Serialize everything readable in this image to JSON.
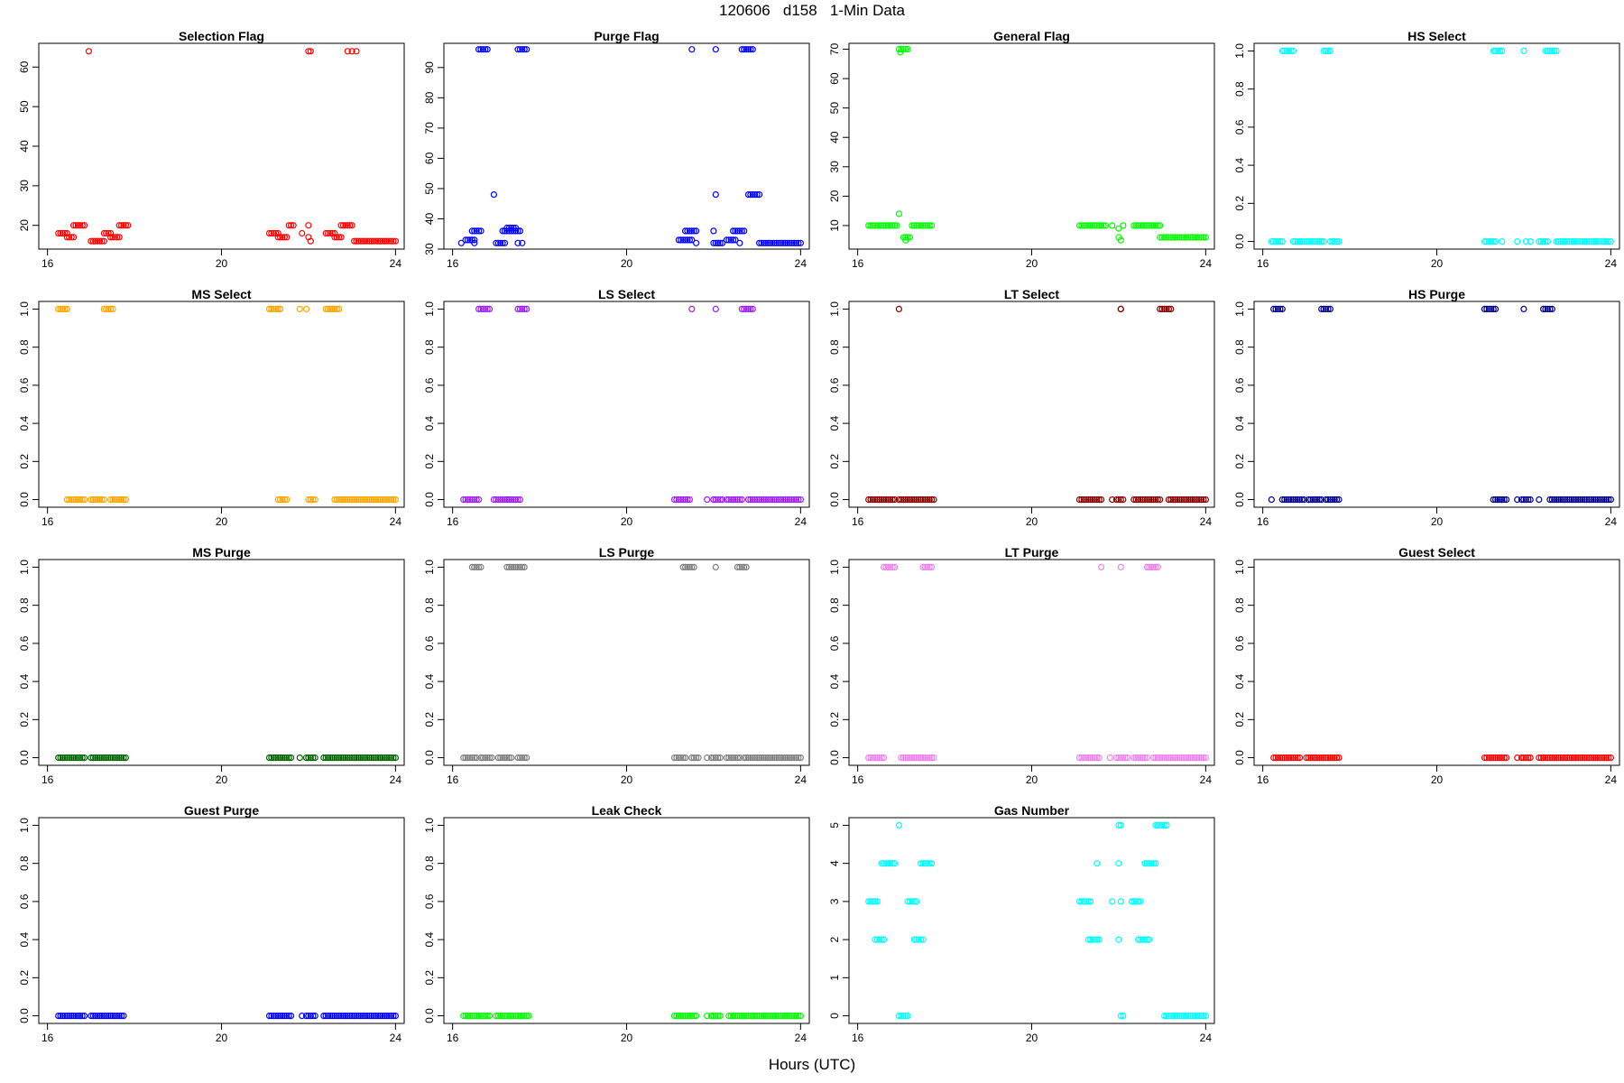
{
  "title": "120606   d158   1-Min Data",
  "xlabel": "Hours (UTC)",
  "chart_data": [
    {
      "type": "scatter",
      "title": "Selection Flag",
      "color": "#ff0000",
      "ylim": [
        14,
        66
      ],
      "yticks": [
        20,
        30,
        40,
        50,
        60
      ],
      "xlim": [
        15.8,
        24.2
      ],
      "xticks": [
        16,
        20,
        24
      ],
      "segments": [
        [
          16.25,
          16.45,
          18
        ],
        [
          16.45,
          16.6,
          17
        ],
        [
          16.6,
          16.85,
          20
        ],
        [
          17.0,
          17.3,
          16
        ],
        [
          17.3,
          17.45,
          18
        ],
        [
          17.45,
          17.65,
          17
        ],
        [
          17.65,
          17.85,
          20
        ],
        [
          21.1,
          21.3,
          18
        ],
        [
          21.3,
          21.5,
          17
        ],
        [
          21.55,
          21.65,
          20
        ],
        [
          22.4,
          22.6,
          18
        ],
        [
          22.6,
          22.75,
          17
        ],
        [
          22.75,
          23.0,
          20
        ],
        [
          23.05,
          24.0,
          16
        ]
      ],
      "points": [
        [
          16.95,
          64
        ],
        [
          22.0,
          64
        ],
        [
          22.05,
          64
        ],
        [
          22.9,
          64
        ],
        [
          23.0,
          64
        ],
        [
          23.1,
          64
        ],
        [
          21.85,
          18
        ],
        [
          22.0,
          20
        ],
        [
          22.0,
          17
        ],
        [
          22.05,
          16
        ]
      ]
    },
    {
      "type": "scatter",
      "title": "Purge Flag",
      "color": "#0000ff",
      "ylim": [
        30,
        98
      ],
      "yticks": [
        30,
        40,
        50,
        60,
        70,
        80,
        90
      ],
      "xlim": [
        15.8,
        24.2
      ],
      "xticks": [
        16,
        20,
        24
      ],
      "segments": [
        [
          16.3,
          16.5,
          33
        ],
        [
          16.45,
          16.65,
          36
        ],
        [
          16.6,
          16.8,
          96
        ],
        [
          17.0,
          17.2,
          32
        ],
        [
          17.15,
          17.55,
          36
        ],
        [
          17.25,
          17.45,
          37
        ],
        [
          17.5,
          17.7,
          96
        ],
        [
          21.2,
          21.5,
          33
        ],
        [
          21.35,
          21.6,
          36
        ],
        [
          22.0,
          22.2,
          32
        ],
        [
          22.3,
          22.5,
          33
        ],
        [
          22.45,
          22.7,
          36
        ],
        [
          22.65,
          22.9,
          96
        ],
        [
          22.8,
          23.05,
          48
        ],
        [
          23.05,
          24.0,
          32
        ]
      ],
      "points": [
        [
          16.2,
          32
        ],
        [
          16.5,
          32
        ],
        [
          16.95,
          48
        ],
        [
          17.6,
          32
        ],
        [
          17.5,
          32
        ],
        [
          21.6,
          32
        ],
        [
          21.5,
          96
        ],
        [
          22.05,
          96
        ],
        [
          22.05,
          48
        ],
        [
          22.0,
          36
        ],
        [
          22.1,
          32
        ],
        [
          22.6,
          32
        ]
      ]
    },
    {
      "type": "scatter",
      "title": "General Flag",
      "color": "#00ff00",
      "ylim": [
        2,
        72
      ],
      "yticks": [
        10,
        20,
        30,
        40,
        50,
        60,
        70
      ],
      "xlim": [
        15.8,
        24.2
      ],
      "xticks": [
        16,
        20,
        24
      ],
      "segments": [
        [
          16.25,
          16.9,
          10
        ],
        [
          16.95,
          17.15,
          70
        ],
        [
          17.05,
          17.2,
          6
        ],
        [
          17.25,
          17.7,
          10
        ],
        [
          21.1,
          21.7,
          10
        ],
        [
          22.35,
          22.95,
          10
        ],
        [
          22.95,
          24.0,
          6
        ]
      ],
      "points": [
        [
          16.95,
          14
        ],
        [
          16.98,
          69
        ],
        [
          17.1,
          5
        ],
        [
          21.85,
          10
        ],
        [
          22.0,
          9
        ],
        [
          22.0,
          6
        ],
        [
          22.05,
          5
        ],
        [
          22.1,
          10
        ]
      ]
    },
    {
      "type": "scatter",
      "title": "HS Select",
      "color": "#00ffff",
      "ylim": [
        -0.04,
        1.04
      ],
      "yticks": [
        0.0,
        0.2,
        0.4,
        0.6,
        0.8,
        1.0
      ],
      "xlim": [
        15.8,
        24.2
      ],
      "xticks": [
        16,
        20,
        24
      ],
      "segments": [
        [
          16.2,
          16.45,
          0
        ],
        [
          16.45,
          16.7,
          1
        ],
        [
          16.7,
          16.95,
          0
        ],
        [
          17.0,
          17.4,
          0
        ],
        [
          17.4,
          17.55,
          1
        ],
        [
          17.55,
          17.75,
          0
        ],
        [
          21.1,
          21.35,
          0
        ],
        [
          21.3,
          21.5,
          1
        ],
        [
          22.35,
          22.55,
          0
        ],
        [
          22.5,
          22.75,
          1
        ],
        [
          22.75,
          24.0,
          0
        ]
      ],
      "points": [
        [
          16.3,
          0
        ],
        [
          21.5,
          0
        ],
        [
          21.85,
          0
        ],
        [
          22.0,
          1
        ],
        [
          22.05,
          0
        ],
        [
          22.15,
          0
        ]
      ]
    },
    {
      "type": "scatter",
      "title": "MS Select",
      "color": "#ffa500",
      "ylim": [
        -0.04,
        1.04
      ],
      "yticks": [
        0.0,
        0.2,
        0.4,
        0.6,
        0.8,
        1.0
      ],
      "xlim": [
        15.8,
        24.2
      ],
      "xticks": [
        16,
        20,
        24
      ],
      "segments": [
        [
          16.25,
          16.45,
          1
        ],
        [
          16.45,
          16.85,
          0
        ],
        [
          17.0,
          17.3,
          0
        ],
        [
          17.3,
          17.5,
          1
        ],
        [
          17.45,
          17.8,
          0
        ],
        [
          21.1,
          21.35,
          1
        ],
        [
          21.3,
          21.5,
          0
        ],
        [
          22.0,
          22.1,
          0
        ],
        [
          22.4,
          22.7,
          1
        ],
        [
          22.6,
          24.0,
          0
        ]
      ],
      "points": [
        [
          21.8,
          1
        ],
        [
          21.95,
          1
        ],
        [
          22.05,
          0
        ],
        [
          22.15,
          0
        ]
      ]
    },
    {
      "type": "scatter",
      "title": "LS Select",
      "color": "#a020f0",
      "ylim": [
        -0.04,
        1.04
      ],
      "yticks": [
        0.0,
        0.2,
        0.4,
        0.6,
        0.8,
        1.0
      ],
      "xlim": [
        15.8,
        24.2
      ],
      "xticks": [
        16,
        20,
        24
      ],
      "segments": [
        [
          16.25,
          16.6,
          0
        ],
        [
          16.6,
          16.85,
          1
        ],
        [
          17.0,
          17.3,
          0
        ],
        [
          17.25,
          17.55,
          0
        ],
        [
          17.5,
          17.7,
          1
        ],
        [
          21.1,
          21.45,
          0
        ],
        [
          22.0,
          22.2,
          0
        ],
        [
          22.3,
          22.65,
          0
        ],
        [
          22.65,
          22.9,
          1
        ],
        [
          22.8,
          24.0,
          0
        ]
      ],
      "points": [
        [
          16.95,
          0
        ],
        [
          21.5,
          1
        ],
        [
          21.85,
          0
        ],
        [
          22.05,
          1
        ],
        [
          22.0,
          0
        ]
      ]
    },
    {
      "type": "scatter",
      "title": "LT Select",
      "color": "#8b0000",
      "ylim": [
        -0.04,
        1.04
      ],
      "yticks": [
        0.0,
        0.2,
        0.4,
        0.6,
        0.8,
        1.0
      ],
      "xlim": [
        15.8,
        24.2
      ],
      "xticks": [
        16,
        20,
        24
      ],
      "segments": [
        [
          16.25,
          16.85,
          0
        ],
        [
          17.0,
          17.3,
          0
        ],
        [
          17.35,
          17.75,
          0
        ],
        [
          21.1,
          21.6,
          0
        ],
        [
          21.95,
          22.1,
          0
        ],
        [
          22.35,
          22.95,
          0
        ],
        [
          22.95,
          23.2,
          1
        ],
        [
          23.15,
          24.0,
          0
        ]
      ],
      "points": [
        [
          16.95,
          1
        ],
        [
          16.95,
          0
        ],
        [
          21.85,
          0
        ],
        [
          22.05,
          1
        ],
        [
          22.05,
          1
        ]
      ]
    },
    {
      "type": "scatter",
      "title": "HS Purge",
      "color": "#00008b",
      "ylim": [
        -0.04,
        1.04
      ],
      "yticks": [
        0.0,
        0.2,
        0.4,
        0.6,
        0.8,
        1.0
      ],
      "xlim": [
        15.8,
        24.2
      ],
      "xticks": [
        16,
        20,
        24
      ],
      "segments": [
        [
          16.25,
          16.45,
          1
        ],
        [
          16.45,
          16.95,
          0
        ],
        [
          17.05,
          17.35,
          0
        ],
        [
          17.35,
          17.55,
          1
        ],
        [
          17.45,
          17.75,
          0
        ],
        [
          21.1,
          21.35,
          1
        ],
        [
          21.3,
          21.6,
          0
        ],
        [
          21.95,
          22.15,
          0
        ],
        [
          22.45,
          22.65,
          1
        ],
        [
          22.6,
          24.0,
          0
        ]
      ],
      "points": [
        [
          16.2,
          0
        ],
        [
          21.5,
          0
        ],
        [
          21.85,
          0
        ],
        [
          22.0,
          1
        ],
        [
          22.35,
          0
        ]
      ]
    },
    {
      "type": "scatter",
      "title": "MS Purge",
      "color": "#006400",
      "ylim": [
        -0.04,
        1.04
      ],
      "yticks": [
        0.0,
        0.2,
        0.4,
        0.6,
        0.8,
        1.0
      ],
      "xlim": [
        15.8,
        24.2
      ],
      "xticks": [
        16,
        20,
        24
      ],
      "segments": [
        [
          16.25,
          16.85,
          0
        ],
        [
          17.0,
          17.8,
          0
        ],
        [
          21.1,
          21.6,
          0
        ],
        [
          21.95,
          22.15,
          0
        ],
        [
          22.35,
          24.0,
          0
        ]
      ],
      "points": [
        [
          21.8,
          0
        ]
      ]
    },
    {
      "type": "scatter",
      "title": "LS Purge",
      "color": "#808080",
      "ylim": [
        -0.04,
        1.04
      ],
      "yticks": [
        0.0,
        0.2,
        0.4,
        0.6,
        0.8,
        1.0
      ],
      "xlim": [
        15.8,
        24.2
      ],
      "xticks": [
        16,
        20,
        24
      ],
      "segments": [
        [
          16.25,
          16.55,
          0
        ],
        [
          16.45,
          16.65,
          1
        ],
        [
          16.65,
          16.9,
          0
        ],
        [
          17.05,
          17.35,
          0
        ],
        [
          17.25,
          17.65,
          1
        ],
        [
          17.5,
          17.7,
          0
        ],
        [
          21.1,
          21.35,
          0
        ],
        [
          21.3,
          21.55,
          1
        ],
        [
          21.5,
          21.65,
          0
        ],
        [
          21.95,
          22.15,
          0
        ],
        [
          22.3,
          22.6,
          0
        ],
        [
          22.55,
          22.75,
          1
        ],
        [
          22.7,
          24.0,
          0
        ]
      ],
      "points": [
        [
          21.85,
          0
        ],
        [
          22.05,
          1
        ]
      ]
    },
    {
      "type": "scatter",
      "title": "LT Purge",
      "color": "#ee82ee",
      "ylim": [
        -0.04,
        1.04
      ],
      "yticks": [
        0.0,
        0.2,
        0.4,
        0.6,
        0.8,
        1.0
      ],
      "xlim": [
        15.8,
        24.2
      ],
      "xticks": [
        16,
        20,
        24
      ],
      "segments": [
        [
          16.25,
          16.6,
          0
        ],
        [
          16.6,
          16.85,
          1
        ],
        [
          17.0,
          17.5,
          0
        ],
        [
          17.5,
          17.7,
          1
        ],
        [
          17.45,
          17.75,
          0
        ],
        [
          21.1,
          21.55,
          0
        ],
        [
          21.95,
          22.2,
          0
        ],
        [
          22.35,
          22.65,
          0
        ],
        [
          22.65,
          22.9,
          1
        ],
        [
          22.8,
          24.0,
          0
        ]
      ],
      "points": [
        [
          21.6,
          1
        ],
        [
          21.8,
          0
        ],
        [
          22.05,
          1
        ]
      ]
    },
    {
      "type": "scatter",
      "title": "Guest Select",
      "color": "#ff0000",
      "ylim": [
        -0.04,
        1.04
      ],
      "yticks": [
        0.0,
        0.2,
        0.4,
        0.6,
        0.8,
        1.0
      ],
      "xlim": [
        15.8,
        24.2
      ],
      "xticks": [
        16,
        20,
        24
      ],
      "segments": [
        [
          16.25,
          16.85,
          0
        ],
        [
          17.0,
          17.75,
          0
        ],
        [
          21.1,
          21.6,
          0
        ],
        [
          21.95,
          22.15,
          0
        ],
        [
          22.35,
          24.0,
          0
        ]
      ],
      "points": [
        [
          21.85,
          0
        ]
      ]
    },
    {
      "type": "scatter",
      "title": "Guest Purge",
      "color": "#0000ff",
      "ylim": [
        -0.04,
        1.04
      ],
      "yticks": [
        0.0,
        0.2,
        0.4,
        0.6,
        0.8,
        1.0
      ],
      "xlim": [
        15.8,
        24.2
      ],
      "xticks": [
        16,
        20,
        24
      ],
      "segments": [
        [
          16.25,
          16.85,
          0
        ],
        [
          17.0,
          17.75,
          0
        ],
        [
          21.1,
          21.6,
          0
        ],
        [
          21.95,
          22.15,
          0
        ],
        [
          22.35,
          24.0,
          0
        ]
      ],
      "points": [
        [
          21.85,
          0
        ]
      ]
    },
    {
      "type": "scatter",
      "title": "Leak Check",
      "color": "#00ff00",
      "ylim": [
        -0.04,
        1.04
      ],
      "yticks": [
        0.0,
        0.2,
        0.4,
        0.6,
        0.8,
        1.0
      ],
      "xlim": [
        15.8,
        24.2
      ],
      "xticks": [
        16,
        20,
        24
      ],
      "segments": [
        [
          16.25,
          16.85,
          0
        ],
        [
          17.0,
          17.75,
          0
        ],
        [
          21.1,
          21.6,
          0
        ],
        [
          21.95,
          22.15,
          0
        ],
        [
          22.35,
          24.0,
          0
        ]
      ],
      "points": [
        [
          21.85,
          0
        ]
      ]
    },
    {
      "type": "scatter",
      "title": "Gas Number",
      "color": "#00ffff",
      "ylim": [
        -0.2,
        5.2
      ],
      "yticks": [
        0,
        1,
        2,
        3,
        4,
        5
      ],
      "xlim": [
        15.8,
        24.2
      ],
      "xticks": [
        16,
        20,
        24
      ],
      "segments": [
        [
          16.25,
          16.45,
          3
        ],
        [
          16.4,
          16.6,
          2
        ],
        [
          16.55,
          16.85,
          4
        ],
        [
          16.95,
          17.15,
          0
        ],
        [
          17.15,
          17.35,
          3
        ],
        [
          17.3,
          17.5,
          2
        ],
        [
          17.45,
          17.7,
          4
        ],
        [
          21.1,
          21.35,
          3
        ],
        [
          21.3,
          21.55,
          2
        ],
        [
          22.3,
          22.5,
          3
        ],
        [
          22.45,
          22.7,
          2
        ],
        [
          22.6,
          22.85,
          4
        ],
        [
          22.85,
          23.1,
          5
        ],
        [
          23.05,
          24.0,
          0
        ]
      ],
      "points": [
        [
          16.95,
          5
        ],
        [
          21.5,
          4
        ],
        [
          21.85,
          3
        ],
        [
          22.0,
          5
        ],
        [
          22.05,
          5
        ],
        [
          22.0,
          4
        ],
        [
          22.05,
          3
        ],
        [
          22.0,
          2
        ],
        [
          22.05,
          0
        ],
        [
          22.1,
          0
        ]
      ]
    }
  ]
}
